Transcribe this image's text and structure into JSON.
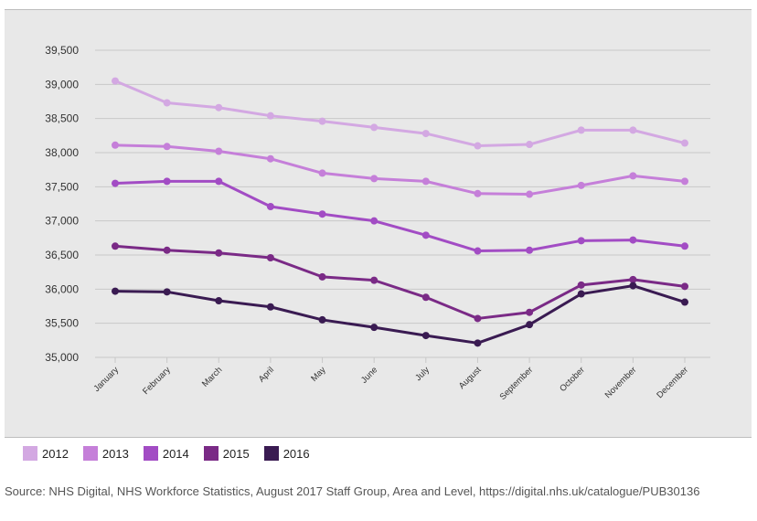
{
  "chart_data": {
    "type": "line",
    "title": "",
    "xlabel": "",
    "ylabel": "",
    "ylim": [
      35000,
      39500
    ],
    "yticks": [
      35000,
      35500,
      36000,
      36500,
      37000,
      37500,
      38000,
      38500,
      39000,
      39500
    ],
    "ytick_labels": [
      "35,000",
      "35,500",
      "36,000",
      "36,500",
      "37,000",
      "37,500",
      "38,000",
      "38,500",
      "39,000",
      "39,500"
    ],
    "categories": [
      "January",
      "February",
      "March",
      "April",
      "May",
      "June",
      "July",
      "August",
      "September",
      "October",
      "November",
      "December"
    ],
    "grid": true,
    "legend_position": "bottom-left",
    "series": [
      {
        "name": "2012",
        "color": "#d3a8e2",
        "values": [
          39050,
          38730,
          38660,
          38540,
          38460,
          38370,
          38280,
          38100,
          38120,
          38330,
          38330,
          38140
        ]
      },
      {
        "name": "2013",
        "color": "#c57fd9",
        "values": [
          38110,
          38090,
          38020,
          37910,
          37700,
          37620,
          37580,
          37400,
          37390,
          37520,
          37660,
          37580
        ]
      },
      {
        "name": "2014",
        "color": "#a24cc4",
        "values": [
          37550,
          37580,
          37580,
          37210,
          37100,
          37000,
          36790,
          36560,
          36570,
          36710,
          36720,
          36630
        ]
      },
      {
        "name": "2015",
        "color": "#7a2a86",
        "values": [
          36630,
          36570,
          36530,
          36460,
          36180,
          36130,
          35880,
          35570,
          35660,
          36060,
          36140,
          36040
        ]
      },
      {
        "name": "2016",
        "color": "#3a1b52",
        "values": [
          35970,
          35960,
          35830,
          35740,
          35550,
          35440,
          35320,
          35210,
          35480,
          35930,
          36050,
          35810
        ]
      }
    ]
  },
  "legend": {
    "items": [
      {
        "label": "2012",
        "color": "#d3a8e2"
      },
      {
        "label": "2013",
        "color": "#c57fd9"
      },
      {
        "label": "2014",
        "color": "#a24cc4"
      },
      {
        "label": "2015",
        "color": "#7a2a86"
      },
      {
        "label": "2016",
        "color": "#3a1b52"
      }
    ]
  },
  "source": "Source: NHS Digital, NHS Workforce Statistics, August 2017 Staff Group, Area and Level, https://digital.nhs.uk/catalogue/PUB30136"
}
